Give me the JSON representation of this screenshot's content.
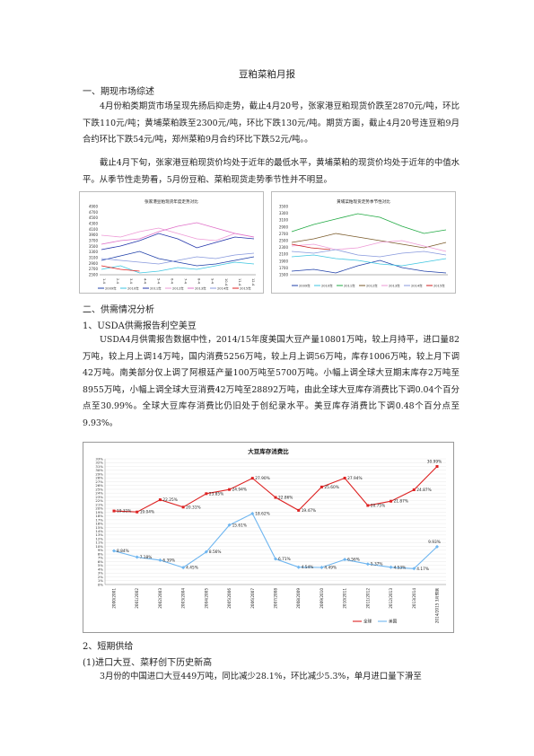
{
  "title": "豆粕菜粕月报",
  "section1": {
    "heading": "一、期现市场综述",
    "paragraphs": [
      "4月份粕类期货市场呈现先扬后抑走势，截止4月20号，张家港豆粕现货价跌至2870元/吨，环比下跌110元/吨；黄埔菜粕跌至2300元/吨，环比下跌130元/吨。期货方面，截止4月20号连豆粕9月合约环比下跌54元/吨，郑州菜粕9月合约环比下跌52元/吨。。",
      "截止4月下旬，张家港豆粕现货价均处于近年的最低水平，黄埔菜粕的现货价均处于近年的中值水平。从季节性走势看，5月份豆粕、菜粕现货走势季节性并不明显。"
    ]
  },
  "chart_left": {
    "title": "张家港豆粕现货年度走势对比",
    "y_ticks": [
      "4900",
      "4700",
      "4500",
      "4300",
      "4100",
      "3900",
      "3700",
      "3500",
      "3300",
      "3100",
      "2900",
      "2700",
      "2500"
    ],
    "x_ticks": [
      "1-4",
      "2-4",
      "3-4",
      "4-4",
      "5-4",
      "6-4",
      "7-4",
      "8-4",
      "9-4",
      "10-4",
      "11-4",
      "12-4"
    ],
    "legend": [
      {
        "name": "2009年",
        "color": "#1f3fa8"
      },
      {
        "name": "2010年",
        "color": "#3ec6e0"
      },
      {
        "name": "2011年",
        "color": "#2233aa"
      },
      {
        "name": "2012年",
        "color": "#ee9ad6"
      },
      {
        "name": "2013年",
        "color": "#e070c8"
      },
      {
        "name": "2014年",
        "color": "#8899dd"
      },
      {
        "name": "2015年",
        "color": "#dd2222"
      }
    ]
  },
  "chart_right": {
    "title": "黄埔菜粕现货走势季节性对比",
    "y_ticks": [
      "3500",
      "3300",
      "3100",
      "2900",
      "2700",
      "2500",
      "2300",
      "2100",
      "1900",
      "1700",
      "1500"
    ],
    "legend": [
      {
        "name": "2009年",
        "color": "#1f3fa8"
      },
      {
        "name": "2010年",
        "color": "#3ec6e0"
      },
      {
        "name": "2011年",
        "color": "#22aa44"
      },
      {
        "name": "2012年",
        "color": "#7a5a2a"
      },
      {
        "name": "2013年",
        "color": "#ee9ad6"
      },
      {
        "name": "2014年",
        "color": "#8899dd"
      },
      {
        "name": "2015年",
        "color": "#cc2222"
      }
    ]
  },
  "section2": {
    "heading": "二、供需情况分析",
    "sub1": "1、USDA供需报告利空美豆",
    "paragraphs": [
      "USDA4月供需报告数据中性，2014/15年度美国大豆产量10801万吨，较上月持平，进口量82万吨，较上月上调14万吨，国内消费5256万吨，较上月上调56万吨，库存1006万吨，较上月下调42万吨。南美部分仅上调了阿根廷产量100万吨至5700万吨。小幅上调全球大豆期末库存2万吨至8955万吨，小幅上调全球大豆消费42万吨至28892万吨，由此全球大豆库存消费比下调0.04个百分点至30.99%。全球大豆库存消费比仍旧处于创纪录水平。美豆库存消费比下调0.48个百分点至9.93%。"
    ],
    "sub2": "2、短期供给",
    "sub2_1": "(1)进口大豆、菜籽创下历史新高",
    "last_para": "3月份的中国进口大豆449万吨，同比减少28.1%，环比减少5.3%，单月进口量下滑至"
  },
  "chart_data": {
    "type": "line",
    "title": "大豆库存消费比",
    "categories": [
      "2000/2001",
      "2001/2002",
      "2002/2003",
      "2003/2004",
      "2004/2005",
      "2005/2006",
      "2006/2007",
      "2007/2008",
      "2008/2009",
      "2009/2010",
      "2010/2011",
      "2011/2012",
      "2012/2013",
      "2013/2014",
      "2014/2015 3月预测"
    ],
    "series": [
      {
        "name": "全球",
        "color": "#dd2222",
        "values": [
          19.31,
          19.04,
          22.25,
          20.31,
          23.85,
          24.94,
          27.9,
          22.86,
          19.47,
          25.6,
          27.94,
          20.75,
          21.87,
          24.87,
          30.99
        ],
        "labels": [
          "19.31%",
          "19.04%",
          "22.25%",
          "20.31%",
          "23.85%",
          "24.94%",
          "27.90%",
          "22.86%",
          "19.47%",
          "25.60%",
          "27.94%",
          "20.75%",
          "21.87%",
          "24.87%",
          "30.99%"
        ]
      },
      {
        "name": "美国",
        "color": "#6fb6f0",
        "values": [
          8.84,
          7.18,
          6.39,
          4.45,
          8.56,
          15.61,
          18.62,
          6.71,
          4.54,
          4.49,
          6.56,
          5.37,
          4.53,
          4.17,
          9.93
        ],
        "labels": [
          "8.84%",
          "7.18%",
          "6.39%",
          "4.45%",
          "8.56%",
          "15.61%",
          "18.62%",
          "6.71%",
          "4.54%",
          "4.49%",
          "6.56%",
          "5.37%",
          "4.53%",
          "4.17%",
          "9.93%"
        ]
      }
    ],
    "y_ticks": [
      "0%",
      "1%",
      "2%",
      "3%",
      "4%",
      "5%",
      "6%",
      "7%",
      "8%",
      "9%",
      "10%",
      "11%",
      "12%",
      "13%",
      "14%",
      "15%",
      "16%",
      "17%",
      "18%",
      "19%",
      "20%",
      "21%",
      "22%",
      "23%",
      "24%",
      "25%",
      "26%",
      "27%",
      "28%",
      "29%",
      "30%",
      "31%",
      "32%",
      "33%"
    ],
    "ylim": [
      0,
      33
    ],
    "legend_position": "bottom-right",
    "grid": true
  }
}
